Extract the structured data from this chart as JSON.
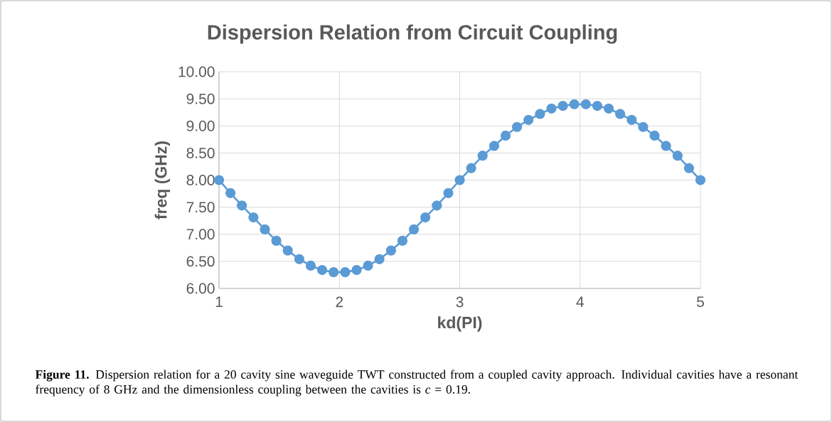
{
  "chart_data": {
    "type": "line",
    "title": "Dispersion Relation from Circuit Coupling",
    "xlabel": "kd(PI)",
    "ylabel": "freq (GHz)",
    "x": [
      1,
      1.095,
      1.19,
      1.286,
      1.381,
      1.476,
      1.571,
      1.667,
      1.762,
      1.857,
      1.952,
      2.048,
      2.143,
      2.238,
      2.333,
      2.429,
      2.524,
      2.619,
      2.714,
      2.81,
      2.905,
      3,
      3.095,
      3.19,
      3.286,
      3.381,
      3.476,
      3.571,
      3.667,
      3.762,
      3.857,
      3.952,
      4.048,
      4.143,
      4.238,
      4.333,
      4.429,
      4.524,
      4.619,
      4.714,
      4.81,
      4.905,
      5
    ],
    "series": [
      {
        "color": "#5b9bd5",
        "values": [
          8.0,
          7.76,
          7.53,
          7.31,
          7.09,
          6.88,
          6.7,
          6.54,
          6.42,
          6.34,
          6.3,
          6.3,
          6.34,
          6.42,
          6.54,
          6.7,
          6.88,
          7.09,
          7.31,
          7.53,
          7.76,
          8.0,
          8.22,
          8.45,
          8.63,
          8.82,
          8.98,
          9.11,
          9.22,
          9.32,
          9.37,
          9.4,
          9.4,
          9.37,
          9.32,
          9.22,
          9.11,
          8.98,
          8.82,
          8.63,
          8.45,
          8.22,
          8.0
        ]
      }
    ],
    "xlim": [
      1,
      5
    ],
    "xticks": [
      1,
      2,
      3,
      4,
      5
    ],
    "ylim": [
      6,
      10
    ],
    "yticks": [
      {
        "value": 6,
        "label": "6.00"
      },
      {
        "value": 6.5,
        "label": "6.50"
      },
      {
        "value": 7,
        "label": "7.00"
      },
      {
        "value": 7.5,
        "label": "7.50"
      },
      {
        "value": 8,
        "label": "8.00"
      },
      {
        "value": 8.5,
        "label": "8.50"
      },
      {
        "value": 9,
        "label": "9.00"
      },
      {
        "value": 9.5,
        "label": "9.50"
      },
      {
        "value": 10,
        "label": "10.00"
      }
    ],
    "grid": true,
    "marker": "circle",
    "line_style": "solid",
    "legend": false,
    "annotations": [
      "**Figure 11.** Dispersion relation for a 20 cavity sine waveguide TWT constructed from a coupled cavity approach. Individual cavities have a resonant frequency of 8 GHz and the dimensionless coupling between the cavities is *c* = 0.19."
    ]
  }
}
